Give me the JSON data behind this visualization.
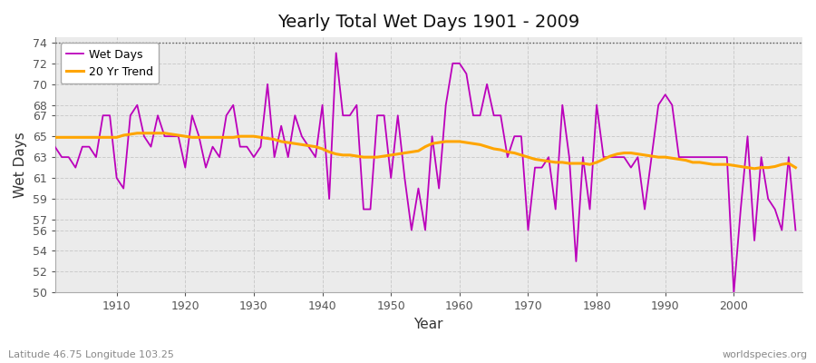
{
  "title": "Yearly Total Wet Days 1901 - 2009",
  "xlabel": "Year",
  "ylabel": "Wet Days",
  "subtitle_left": "Latitude 46.75 Longitude 103.25",
  "subtitle_right": "worldspecies.org",
  "legend_entries": [
    "Wet Days",
    "20 Yr Trend"
  ],
  "wet_days_color": "#BB00BB",
  "trend_color": "#FFA500",
  "fig_bg_color": "#FFFFFF",
  "plot_bg_color": "#EBEBEB",
  "ylim": [
    50,
    74.5
  ],
  "yticks": [
    50,
    52,
    54,
    56,
    57,
    59,
    61,
    63,
    65,
    67,
    68,
    70,
    72,
    74
  ],
  "xlim": [
    1901,
    2010
  ],
  "xticks": [
    1910,
    1920,
    1930,
    1940,
    1950,
    1960,
    1970,
    1980,
    1990,
    2000
  ],
  "years": [
    1901,
    1902,
    1903,
    1904,
    1905,
    1906,
    1907,
    1908,
    1909,
    1910,
    1911,
    1912,
    1913,
    1914,
    1915,
    1916,
    1917,
    1918,
    1919,
    1920,
    1921,
    1922,
    1923,
    1924,
    1925,
    1926,
    1927,
    1928,
    1929,
    1930,
    1931,
    1932,
    1933,
    1934,
    1935,
    1936,
    1937,
    1938,
    1939,
    1940,
    1941,
    1942,
    1943,
    1944,
    1945,
    1946,
    1947,
    1948,
    1949,
    1950,
    1951,
    1952,
    1953,
    1954,
    1955,
    1956,
    1957,
    1958,
    1959,
    1960,
    1961,
    1962,
    1963,
    1964,
    1965,
    1966,
    1967,
    1968,
    1969,
    1970,
    1971,
    1972,
    1973,
    1974,
    1975,
    1976,
    1977,
    1978,
    1979,
    1980,
    1981,
    1982,
    1983,
    1984,
    1985,
    1986,
    1987,
    1988,
    1989,
    1990,
    1991,
    1992,
    1993,
    1994,
    1995,
    1996,
    1997,
    1998,
    1999,
    2000,
    2001,
    2002,
    2003,
    2004,
    2005,
    2006,
    2007,
    2008,
    2009
  ],
  "wet_days": [
    64,
    63,
    63,
    62,
    64,
    64,
    63,
    67,
    67,
    61,
    60,
    67,
    68,
    65,
    64,
    67,
    65,
    65,
    65,
    62,
    67,
    65,
    62,
    64,
    63,
    67,
    68,
    64,
    64,
    63,
    64,
    70,
    63,
    66,
    63,
    67,
    65,
    64,
    63,
    68,
    59,
    73,
    67,
    67,
    68,
    58,
    58,
    67,
    67,
    61,
    67,
    61,
    56,
    60,
    56,
    65,
    60,
    68,
    72,
    72,
    71,
    67,
    67,
    70,
    67,
    67,
    63,
    65,
    65,
    56,
    62,
    62,
    63,
    58,
    68,
    63,
    53,
    63,
    58,
    68,
    63,
    63,
    63,
    63,
    62,
    63,
    58,
    63,
    68,
    69,
    68,
    63,
    63,
    63,
    63,
    63,
    63,
    63,
    63,
    50,
    58,
    65,
    55,
    63,
    59,
    58,
    56,
    63,
    56
  ],
  "trend": [
    64.9,
    64.9,
    64.9,
    64.9,
    64.9,
    64.9,
    64.9,
    64.9,
    64.9,
    64.9,
    65.1,
    65.2,
    65.3,
    65.3,
    65.3,
    65.3,
    65.3,
    65.2,
    65.1,
    65.0,
    64.9,
    64.9,
    64.9,
    64.9,
    64.9,
    64.9,
    64.9,
    65.0,
    65.0,
    65.0,
    64.9,
    64.8,
    64.7,
    64.5,
    64.4,
    64.3,
    64.2,
    64.1,
    64.0,
    63.8,
    63.5,
    63.3,
    63.2,
    63.2,
    63.1,
    63.0,
    63.0,
    63.0,
    63.1,
    63.2,
    63.3,
    63.4,
    63.5,
    63.6,
    64.0,
    64.3,
    64.4,
    64.5,
    64.5,
    64.5,
    64.4,
    64.3,
    64.2,
    64.0,
    63.8,
    63.7,
    63.5,
    63.4,
    63.2,
    63.0,
    62.8,
    62.7,
    62.6,
    62.5,
    62.5,
    62.4,
    62.4,
    62.4,
    62.3,
    62.5,
    62.8,
    63.1,
    63.3,
    63.4,
    63.4,
    63.3,
    63.2,
    63.1,
    63.0,
    63.0,
    62.9,
    62.8,
    62.7,
    62.5,
    62.5,
    62.4,
    62.3,
    62.3,
    62.3,
    62.2,
    62.1,
    62.0,
    61.9,
    62.0,
    62.0,
    62.1,
    62.3,
    62.4,
    62.0
  ]
}
